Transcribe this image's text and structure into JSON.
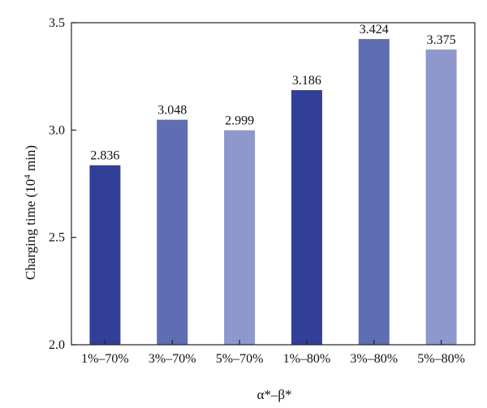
{
  "chart_data": {
    "type": "bar",
    "title": "",
    "xlabel": "α*–β*",
    "ylabel": "Charging time (10",
    "ylabel_sup": "4",
    "ylabel_tail": " min)",
    "categories": [
      "1%–70%",
      "3%–70%",
      "5%–70%",
      "1%–80%",
      "3%–80%",
      "5%–80%"
    ],
    "values": [
      2.836,
      3.048,
      2.999,
      3.186,
      3.424,
      3.375
    ],
    "data_labels": [
      "2.836",
      "3.048",
      "2.999",
      "3.186",
      "3.424",
      "3.375"
    ],
    "ylim": [
      2.0,
      3.5
    ],
    "yticks": [
      2.0,
      2.5,
      3.0,
      3.5
    ],
    "ytick_labels": [
      "2.0",
      "2.5",
      "3.0",
      "3.5"
    ],
    "bar_colors": [
      "#323f96",
      "#5f6db2",
      "#8f98cc",
      "#323f96",
      "#5f6db2",
      "#8f98cc"
    ],
    "grid": false,
    "legend": "none"
  }
}
